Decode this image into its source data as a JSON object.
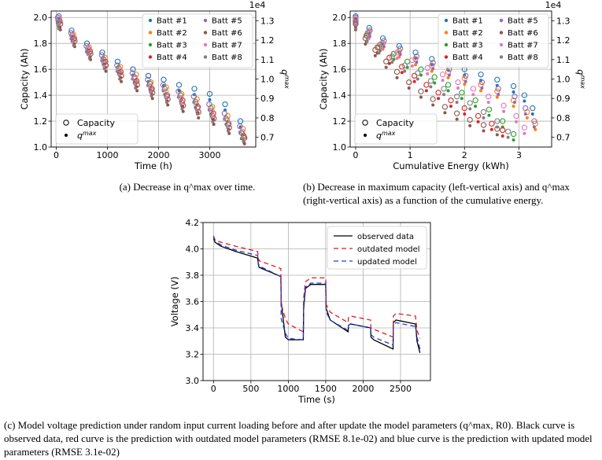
{
  "chart_data": [
    {
      "type": "scatter",
      "id": "a",
      "xlabel": "Time (h)",
      "ylabel": "Capacity (Ah)",
      "ylabel2": "q^max",
      "y2_exponent": "1e4",
      "xlim": [
        -100,
        3900
      ],
      "ylim": [
        1.0,
        2.05
      ],
      "y2lim": [
        0.65,
        1.35
      ],
      "xticks": [
        "0",
        "1000",
        "2000",
        "3000"
      ],
      "yticks": [
        "1.0",
        "1.2",
        "1.4",
        "1.6",
        "1.8",
        "2.0"
      ],
      "y2ticks": [
        "0.7",
        "0.8",
        "0.9",
        "1.0",
        "1.1",
        "1.2",
        "1.3"
      ],
      "legend_series": [
        "Batt #1",
        "Batt #2",
        "Batt #3",
        "Batt #4",
        "Batt #5",
        "Batt #6",
        "Batt #7",
        "Batt #8"
      ],
      "legend_markers": [
        "Capacity",
        "q^max"
      ],
      "series": [
        {
          "name": "Batt #1",
          "x": [
            50,
            300,
            600,
            900,
            1200,
            1500,
            1800,
            2100,
            2400,
            2700,
            3000,
            3300,
            3600
          ],
          "capacity": [
            2.01,
            1.9,
            1.8,
            1.73,
            1.66,
            1.6,
            1.55,
            1.52,
            1.48,
            1.45,
            1.41,
            1.33,
            1.2
          ]
        },
        {
          "name": "Batt #2",
          "x": [
            60,
            330,
            640,
            950,
            1250,
            1560,
            1850,
            2150,
            2450,
            2750,
            3050,
            3350,
            3650
          ],
          "capacity": [
            1.99,
            1.87,
            1.77,
            1.69,
            1.62,
            1.56,
            1.5,
            1.46,
            1.41,
            1.37,
            1.31,
            1.24,
            1.14
          ]
        },
        {
          "name": "Batt #3",
          "x": [
            40,
            310,
            620,
            920,
            1220,
            1530,
            1830,
            2120,
            2430,
            2720,
            3020,
            3320,
            3620
          ],
          "capacity": [
            1.98,
            1.86,
            1.76,
            1.68,
            1.61,
            1.54,
            1.49,
            1.45,
            1.4,
            1.35,
            1.3,
            1.22,
            1.11
          ]
        },
        {
          "name": "Batt #4",
          "x": [
            70,
            350,
            660,
            960,
            1260,
            1570,
            1870,
            2170,
            2470,
            2770,
            3070,
            3370,
            3670
          ],
          "capacity": [
            1.97,
            1.84,
            1.74,
            1.66,
            1.58,
            1.51,
            1.45,
            1.4,
            1.36,
            1.31,
            1.26,
            1.18,
            1.08
          ]
        },
        {
          "name": "Batt #5",
          "x": [
            30,
            290,
            590,
            890,
            1190,
            1490,
            1790,
            2090,
            2390,
            2690,
            2990,
            3290,
            3590
          ],
          "capacity": [
            2.0,
            1.88,
            1.78,
            1.71,
            1.63,
            1.57,
            1.52,
            1.48,
            1.43,
            1.39,
            1.33,
            1.26,
            1.16
          ]
        },
        {
          "name": "Batt #6",
          "x": [
            80,
            360,
            670,
            970,
            1270,
            1580,
            1880,
            2180,
            2480,
            2780,
            3080,
            3380,
            3680
          ],
          "capacity": [
            1.95,
            1.82,
            1.72,
            1.63,
            1.55,
            1.48,
            1.42,
            1.37,
            1.32,
            1.27,
            1.22,
            1.15,
            1.07
          ]
        },
        {
          "name": "Batt #7",
          "x": [
            55,
            320,
            630,
            930,
            1230,
            1540,
            1840,
            2140,
            2440,
            2740,
            3040,
            3340,
            3640
          ],
          "capacity": [
            1.99,
            1.86,
            1.76,
            1.67,
            1.6,
            1.53,
            1.47,
            1.43,
            1.38,
            1.33,
            1.28,
            1.21,
            1.12
          ]
        },
        {
          "name": "Batt #8",
          "x": [
            45,
            340,
            650,
            940,
            1240,
            1550,
            1860,
            2160,
            2460,
            2760,
            3060,
            3360,
            3660
          ],
          "capacity": [
            1.96,
            1.83,
            1.73,
            1.65,
            1.57,
            1.5,
            1.44,
            1.39,
            1.34,
            1.3,
            1.24,
            1.17,
            1.09
          ]
        }
      ]
    },
    {
      "type": "scatter",
      "id": "b",
      "xlabel": "Cumulative Energy (kWh)",
      "ylabel": "Capacity (Ah)",
      "ylabel2": "q^max",
      "y2_exponent": "1e4",
      "xlim": [
        -0.1,
        3.6
      ],
      "ylim": [
        1.0,
        2.05
      ],
      "y2lim": [
        0.65,
        1.35
      ],
      "xticks": [
        "0",
        "1",
        "2",
        "3"
      ],
      "yticks": [
        "1.0",
        "1.2",
        "1.4",
        "1.6",
        "1.8",
        "2.0"
      ],
      "y2ticks": [
        "0.7",
        "0.8",
        "0.9",
        "1.0",
        "1.1",
        "1.2",
        "1.3"
      ],
      "legend_series": [
        "Batt #1",
        "Batt #2",
        "Batt #3",
        "Batt #4",
        "Batt #5",
        "Batt #6",
        "Batt #7",
        "Batt #8"
      ],
      "legend_markers": [
        "Capacity",
        "q^max"
      ],
      "series": [
        {
          "name": "Batt #1",
          "x": [
            0,
            0.25,
            0.5,
            0.8,
            1.1,
            1.4,
            1.7,
            2.0,
            2.3,
            2.6,
            2.9,
            3.1,
            3.25
          ],
          "capacity": [
            2.01,
            1.92,
            1.84,
            1.78,
            1.73,
            1.68,
            1.64,
            1.6,
            1.56,
            1.52,
            1.47,
            1.4,
            1.3
          ]
        },
        {
          "name": "Batt #2",
          "x": [
            0,
            0.25,
            0.5,
            0.8,
            1.1,
            1.4,
            1.7,
            2.0,
            2.3,
            2.6,
            2.9,
            3.15,
            3.3
          ],
          "capacity": [
            1.99,
            1.89,
            1.8,
            1.74,
            1.68,
            1.63,
            1.58,
            1.53,
            1.48,
            1.43,
            1.36,
            1.27,
            1.18
          ]
        },
        {
          "name": "Batt #3",
          "x": [
            0,
            0.22,
            0.45,
            0.7,
            0.95,
            1.2,
            1.45,
            1.7,
            1.95,
            2.2,
            2.45,
            2.7,
            2.9
          ],
          "capacity": [
            1.98,
            1.88,
            1.79,
            1.72,
            1.66,
            1.6,
            1.54,
            1.48,
            1.42,
            1.36,
            1.29,
            1.2,
            1.1
          ]
        },
        {
          "name": "Batt #4",
          "x": [
            0,
            0.2,
            0.4,
            0.62,
            0.85,
            1.08,
            1.3,
            1.52,
            1.75,
            2.0,
            2.25,
            2.5,
            2.7
          ],
          "capacity": [
            1.97,
            1.86,
            1.77,
            1.69,
            1.62,
            1.55,
            1.48,
            1.42,
            1.36,
            1.3,
            1.24,
            1.18,
            1.13
          ]
        },
        {
          "name": "Batt #5",
          "x": [
            0,
            0.26,
            0.52,
            0.82,
            1.12,
            1.42,
            1.72,
            2.02,
            2.32,
            2.62,
            2.92,
            3.12,
            3.28
          ],
          "capacity": [
            2.0,
            1.9,
            1.82,
            1.76,
            1.7,
            1.65,
            1.6,
            1.55,
            1.5,
            1.45,
            1.39,
            1.3,
            1.2
          ]
        },
        {
          "name": "Batt #6",
          "x": [
            0,
            0.18,
            0.36,
            0.56,
            0.76,
            0.98,
            1.2,
            1.42,
            1.64,
            1.86,
            2.1,
            2.35,
            2.6
          ],
          "capacity": [
            1.95,
            1.84,
            1.75,
            1.66,
            1.58,
            1.5,
            1.43,
            1.37,
            1.31,
            1.26,
            1.21,
            1.17,
            1.14
          ]
        },
        {
          "name": "Batt #7",
          "x": [
            0,
            0.24,
            0.48,
            0.76,
            1.04,
            1.32,
            1.6,
            1.88,
            2.16,
            2.44,
            2.72,
            2.95,
            3.1
          ],
          "capacity": [
            1.99,
            1.88,
            1.8,
            1.73,
            1.67,
            1.61,
            1.56,
            1.5,
            1.45,
            1.39,
            1.32,
            1.24,
            1.15
          ]
        },
        {
          "name": "Batt #8",
          "x": [
            0,
            0.21,
            0.43,
            0.67,
            0.9,
            1.14,
            1.38,
            1.62,
            1.86,
            2.1,
            2.35,
            2.6,
            2.8
          ],
          "capacity": [
            1.96,
            1.86,
            1.77,
            1.7,
            1.63,
            1.57,
            1.51,
            1.45,
            1.39,
            1.34,
            1.27,
            1.2,
            1.12
          ]
        }
      ]
    },
    {
      "type": "line",
      "id": "c",
      "xlabel": "Time (s)",
      "ylabel": "Voltage (V)",
      "xlim": [
        -140,
        2900
      ],
      "ylim": [
        3.0,
        4.2
      ],
      "xticks": [
        "0",
        "500",
        "1000",
        "1500",
        "2000",
        "2500"
      ],
      "yticks": [
        "3.0",
        "3.2",
        "3.4",
        "3.6",
        "3.8",
        "4.0",
        "4.2"
      ],
      "series": [
        {
          "name": "observed data",
          "color": "#000000",
          "dash": "",
          "x": [
            0,
            20,
            100,
            300,
            590,
            600,
            610,
            900,
            905,
            960,
            1000,
            1200,
            1205,
            1230,
            1300,
            1500,
            1505,
            1560,
            1800,
            1805,
            1830,
            2100,
            2105,
            2140,
            2400,
            2405,
            2440,
            2700,
            2720,
            2760
          ],
          "y": [
            4.08,
            4.05,
            4.02,
            3.98,
            3.93,
            3.88,
            3.86,
            3.79,
            3.6,
            3.33,
            3.31,
            3.31,
            3.55,
            3.7,
            3.73,
            3.73,
            3.55,
            3.46,
            3.37,
            3.42,
            3.43,
            3.4,
            3.33,
            3.31,
            3.24,
            3.44,
            3.46,
            3.43,
            3.3,
            3.21
          ]
        },
        {
          "name": "outdated model",
          "color": "#e41a1c",
          "dash": "6 4",
          "x": [
            0,
            20,
            100,
            300,
            590,
            600,
            610,
            900,
            905,
            960,
            1000,
            1200,
            1205,
            1230,
            1300,
            1500,
            1505,
            1560,
            1800,
            1805,
            1830,
            2100,
            2105,
            2140,
            2400,
            2405,
            2440,
            2700,
            2720,
            2760
          ],
          "y": [
            4.1,
            4.07,
            4.05,
            4.02,
            3.98,
            3.93,
            3.91,
            3.85,
            3.58,
            3.47,
            3.43,
            3.37,
            3.63,
            3.75,
            3.78,
            3.78,
            3.58,
            3.52,
            3.44,
            3.48,
            3.49,
            3.46,
            3.4,
            3.39,
            3.33,
            3.49,
            3.51,
            3.49,
            3.38,
            3.32
          ]
        },
        {
          "name": "updated model",
          "color": "#1f3fd6",
          "dash": "6 4",
          "x": [
            0,
            20,
            100,
            300,
            590,
            600,
            610,
            900,
            905,
            960,
            1000,
            1200,
            1205,
            1230,
            1300,
            1500,
            1505,
            1560,
            1800,
            1805,
            1830,
            2100,
            2105,
            2140,
            2400,
            2405,
            2440,
            2700,
            2720,
            2760
          ],
          "y": [
            4.09,
            4.06,
            4.03,
            3.99,
            3.95,
            3.89,
            3.87,
            3.79,
            3.47,
            3.36,
            3.32,
            3.31,
            3.58,
            3.71,
            3.74,
            3.74,
            3.52,
            3.46,
            3.38,
            3.42,
            3.43,
            3.4,
            3.35,
            3.33,
            3.27,
            3.42,
            3.44,
            3.41,
            3.33,
            3.24
          ]
        }
      ]
    }
  ],
  "captions": {
    "a": "(a) Decrease in q^max over time.",
    "b": "(b) Decrease in maximum capacity (left-vertical axis) and q^max (right-vertical axis) as a function of the cumulative energy.",
    "c": "(c) Model voltage prediction under random input current loading before and after update the model parameters (q^max, R0). Black curve is observed data, red curve is the prediction with outdated model parameters (RMSE 8.1e-02) and blue curve is the prediction with updated model parameters (RMSE 3.1e-02)"
  },
  "colors": {
    "batt": [
      "#1f77b4",
      "#ff7f0e",
      "#2ca02c",
      "#d62728",
      "#9467bd",
      "#8c564b",
      "#e377c2",
      "#7f7f7f"
    ]
  }
}
